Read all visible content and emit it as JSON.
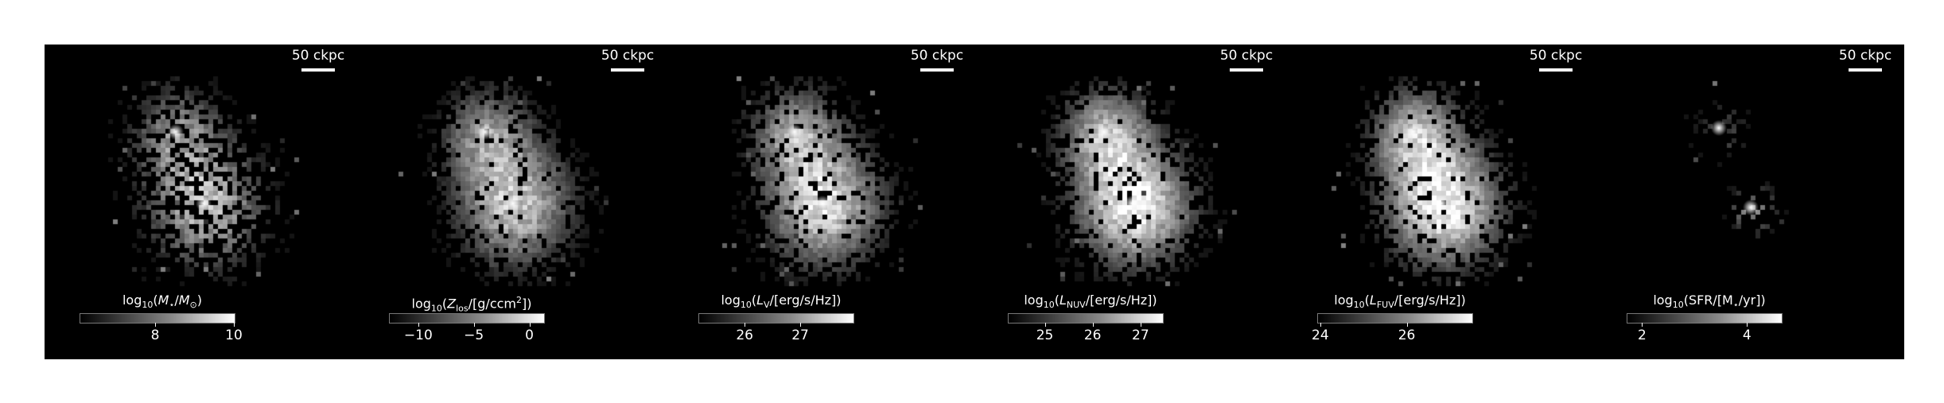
{
  "scale_bar_label": "50 ckpc",
  "panels": [
    {
      "colorbar_label": "log<sub>10</sub>(<i>M</i><sub>⋆</sub>/<i>M</i><sub>⊙</sub>)",
      "ticks": [
        {
          "label": "8",
          "frac": 0.49
        },
        {
          "label": "10",
          "frac": 1.0
        }
      ],
      "brightness": 0.72,
      "density": 0.55,
      "sfr": false
    },
    {
      "colorbar_label": "log<sub>10</sub>(<i>Z</i><sub>los</sub>/[g/ccm<sup>2</sup>])",
      "ticks": [
        {
          "label": "−10",
          "frac": 0.19
        },
        {
          "label": "−5",
          "frac": 0.55
        },
        {
          "label": "0",
          "frac": 0.91
        }
      ],
      "brightness": 0.75,
      "density": 0.9,
      "sfr": false
    },
    {
      "colorbar_label": "log<sub>10</sub>(<i>L</i><sub>V</sub>/[erg/s/Hz])",
      "ticks": [
        {
          "label": "26",
          "frac": 0.3
        },
        {
          "label": "27",
          "frac": 0.66
        }
      ],
      "brightness": 0.85,
      "density": 0.85,
      "sfr": false
    },
    {
      "colorbar_label": "log<sub>10</sub>(<i>L</i><sub>NUV</sub>/[erg/s/Hz])",
      "ticks": [
        {
          "label": "25",
          "frac": 0.24
        },
        {
          "label": "26",
          "frac": 0.55
        },
        {
          "label": "27",
          "frac": 0.86
        }
      ],
      "brightness": 0.95,
      "density": 0.88,
      "sfr": false
    },
    {
      "colorbar_label": "log<sub>10</sub>(<i>L</i><sub>FUV</sub>/[erg/s/Hz])",
      "ticks": [
        {
          "label": "24",
          "frac": 0.02
        },
        {
          "label": "26",
          "frac": 0.58
        }
      ],
      "brightness": 0.97,
      "density": 0.88,
      "sfr": false
    },
    {
      "colorbar_label": "log<sub>10</sub>(SFR/[M<sub>⋆</sub>/yr])",
      "ticks": [
        {
          "label": "2",
          "frac": 0.1
        },
        {
          "label": "4",
          "frac": 0.78
        }
      ],
      "brightness": 0.6,
      "density": 0.3,
      "sfr": true
    }
  ]
}
